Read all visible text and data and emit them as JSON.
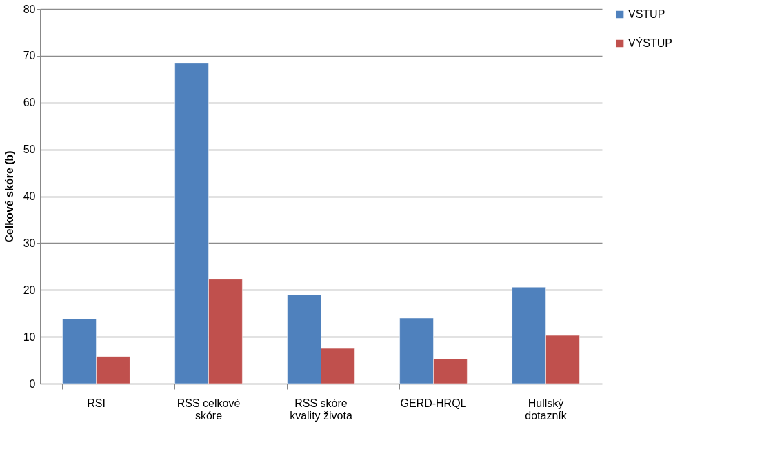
{
  "chart_data": {
    "type": "bar",
    "ylabel": "Celkové skóre (b)",
    "categories": [
      "RSI",
      "RSS celkové skóre",
      "RSS skóre kvality života",
      "GERD-HRQL",
      "Hullský dotazník"
    ],
    "series": [
      {
        "name": "VSTUP",
        "color": "#4f81bd",
        "values": [
          13.8,
          68.4,
          19.0,
          14.0,
          20.6
        ]
      },
      {
        "name": "VÝSTUP",
        "color": "#c0504d",
        "values": [
          5.8,
          22.3,
          7.5,
          5.3,
          10.3
        ]
      }
    ],
    "ylim": [
      0,
      80
    ],
    "yticks": [
      0,
      10,
      20,
      30,
      40,
      50,
      60,
      70,
      80
    ],
    "grid": "y",
    "legend": "right"
  }
}
